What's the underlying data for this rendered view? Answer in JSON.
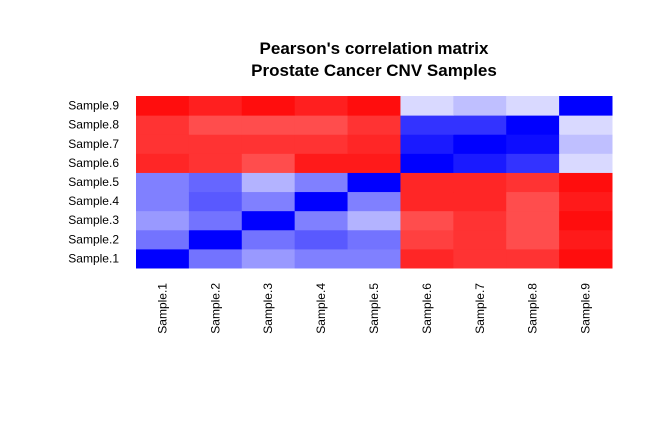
{
  "chart_data": {
    "type": "heatmap",
    "title": "Pearson's correlation matrix",
    "subtitle": "Prostate Cancer CNV Samples",
    "x_labels": [
      "Sample.1",
      "Sample.2",
      "Sample.3",
      "Sample.4",
      "Sample.5",
      "Sample.6",
      "Sample.7",
      "Sample.8",
      "Sample.9"
    ],
    "y_labels": [
      "Sample.1",
      "Sample.2",
      "Sample.3",
      "Sample.4",
      "Sample.5",
      "Sample.6",
      "Sample.7",
      "Sample.8",
      "Sample.9"
    ],
    "color_scale": {
      "low": "#FF0000",
      "mid": "#FFFFFF",
      "high": "#0000FF"
    },
    "intensity_range": [
      -1,
      1
    ],
    "matrix": [
      [
        1.0,
        0.55,
        0.4,
        0.5,
        0.5,
        -0.85,
        -0.8,
        -0.8,
        -0.95
      ],
      [
        0.55,
        1.0,
        0.55,
        0.65,
        0.55,
        -0.75,
        -0.8,
        -0.7,
        -0.9
      ],
      [
        0.4,
        0.55,
        1.0,
        0.5,
        0.3,
        -0.7,
        -0.8,
        -0.7,
        -0.95
      ],
      [
        0.5,
        0.65,
        0.5,
        1.0,
        0.5,
        -0.85,
        -0.85,
        -0.7,
        -0.9
      ],
      [
        0.5,
        0.6,
        0.3,
        0.5,
        1.0,
        -0.85,
        -0.85,
        -0.8,
        -0.95
      ],
      [
        -0.85,
        -0.8,
        -0.7,
        -0.9,
        -0.9,
        1.0,
        0.9,
        0.8,
        0.15
      ],
      [
        -0.8,
        -0.8,
        -0.8,
        -0.8,
        -0.85,
        0.9,
        1.0,
        0.95,
        0.25
      ],
      [
        -0.8,
        -0.7,
        -0.7,
        -0.7,
        -0.8,
        0.8,
        0.8,
        1.0,
        0.15
      ],
      [
        -0.95,
        -0.88,
        -0.95,
        -0.88,
        -0.95,
        0.15,
        0.25,
        0.15,
        1.0
      ]
    ]
  }
}
